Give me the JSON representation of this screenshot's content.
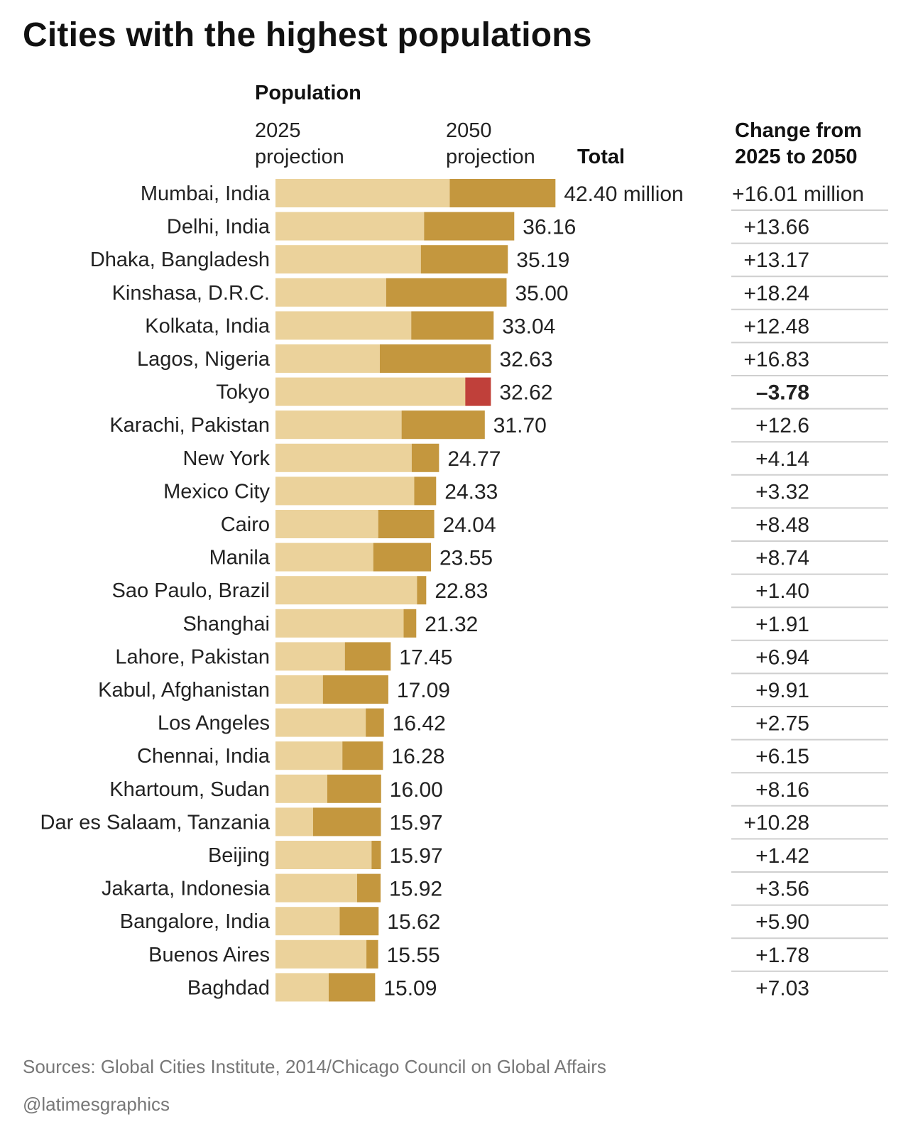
{
  "title": "Cities with the highest populations",
  "headers": {
    "population": "Population",
    "proj_2025_line1": "2025",
    "proj_2025_line2": "projection",
    "proj_2050_line1": "2050",
    "proj_2050_line2": "projection",
    "total": "Total",
    "change_line1": "Change from",
    "change_line2": "2025 to 2050"
  },
  "colors": {
    "base_2025": "#ebd29b",
    "growth": "#c4973e",
    "decline": "#c0403a",
    "row_line": "#cfcfcf"
  },
  "chart_data": {
    "type": "bar",
    "orientation": "horizontal",
    "stacked": true,
    "units": "million",
    "categories": [
      "Mumbai, India",
      "Delhi, India",
      "Dhaka, Bangladesh",
      "Kinshasa, D.R.C.",
      "Kolkata, India",
      "Lagos, Nigeria",
      "Tokyo",
      "Karachi, Pakistan",
      "New York",
      "Mexico City",
      "Cairo",
      "Manila",
      "Sao Paulo, Brazil",
      "Shanghai",
      "Lahore, Pakistan",
      "Kabul, Afghanistan",
      "Los Angeles",
      "Chennai, India",
      "Khartoum, Sudan",
      "Dar es Salaam, Tanzania",
      "Beijing",
      "Jakarta, Indonesia",
      "Bangalore, India",
      "Buenos Aires",
      "Baghdad"
    ],
    "total_2050": [
      42.4,
      36.16,
      35.19,
      35.0,
      33.04,
      32.63,
      32.62,
      31.7,
      24.77,
      24.33,
      24.04,
      23.55,
      22.83,
      21.32,
      17.45,
      17.09,
      16.42,
      16.28,
      16.0,
      15.97,
      15.97,
      15.92,
      15.62,
      15.55,
      15.09
    ],
    "total_labels": [
      "42.40 million",
      "36.16",
      "35.19",
      "35.00",
      "33.04",
      "32.63",
      "32.62",
      "31.70",
      "24.77",
      "24.33",
      "24.04",
      "23.55",
      "22.83",
      "21.32",
      "17.45",
      "17.09",
      "16.42",
      "16.28",
      "16.00",
      "15.97",
      "15.97",
      "15.92",
      "15.62",
      "15.55",
      "15.09"
    ],
    "change": [
      16.01,
      13.66,
      13.17,
      18.24,
      12.48,
      16.83,
      -3.78,
      12.6,
      4.14,
      3.32,
      8.48,
      8.74,
      1.4,
      1.91,
      6.94,
      9.91,
      2.75,
      6.15,
      8.16,
      10.28,
      1.42,
      3.56,
      5.9,
      1.78,
      7.03
    ],
    "change_labels": [
      "+16.01 million",
      "+13.66",
      "+13.17",
      "+18.24",
      "+12.48",
      "+16.83",
      "–3.78",
      "+12.6",
      "+4.14",
      "+3.32",
      "+8.48",
      "+8.74",
      "+1.40",
      "+1.91",
      "+6.94",
      "+9.91",
      "+2.75",
      "+6.15",
      "+8.16",
      "+10.28",
      "+1.42",
      "+3.56",
      "+5.90",
      "+1.78",
      "+7.03"
    ],
    "series": [
      {
        "name": "2025 projection"
      },
      {
        "name": "2050 projection"
      }
    ],
    "xlabel": "Population",
    "ylabel": ""
  },
  "footer": {
    "source": "Sources: Global Cities Institute, 2014/Chicago Council on Global Affairs",
    "credit": "@latimesgraphics"
  }
}
